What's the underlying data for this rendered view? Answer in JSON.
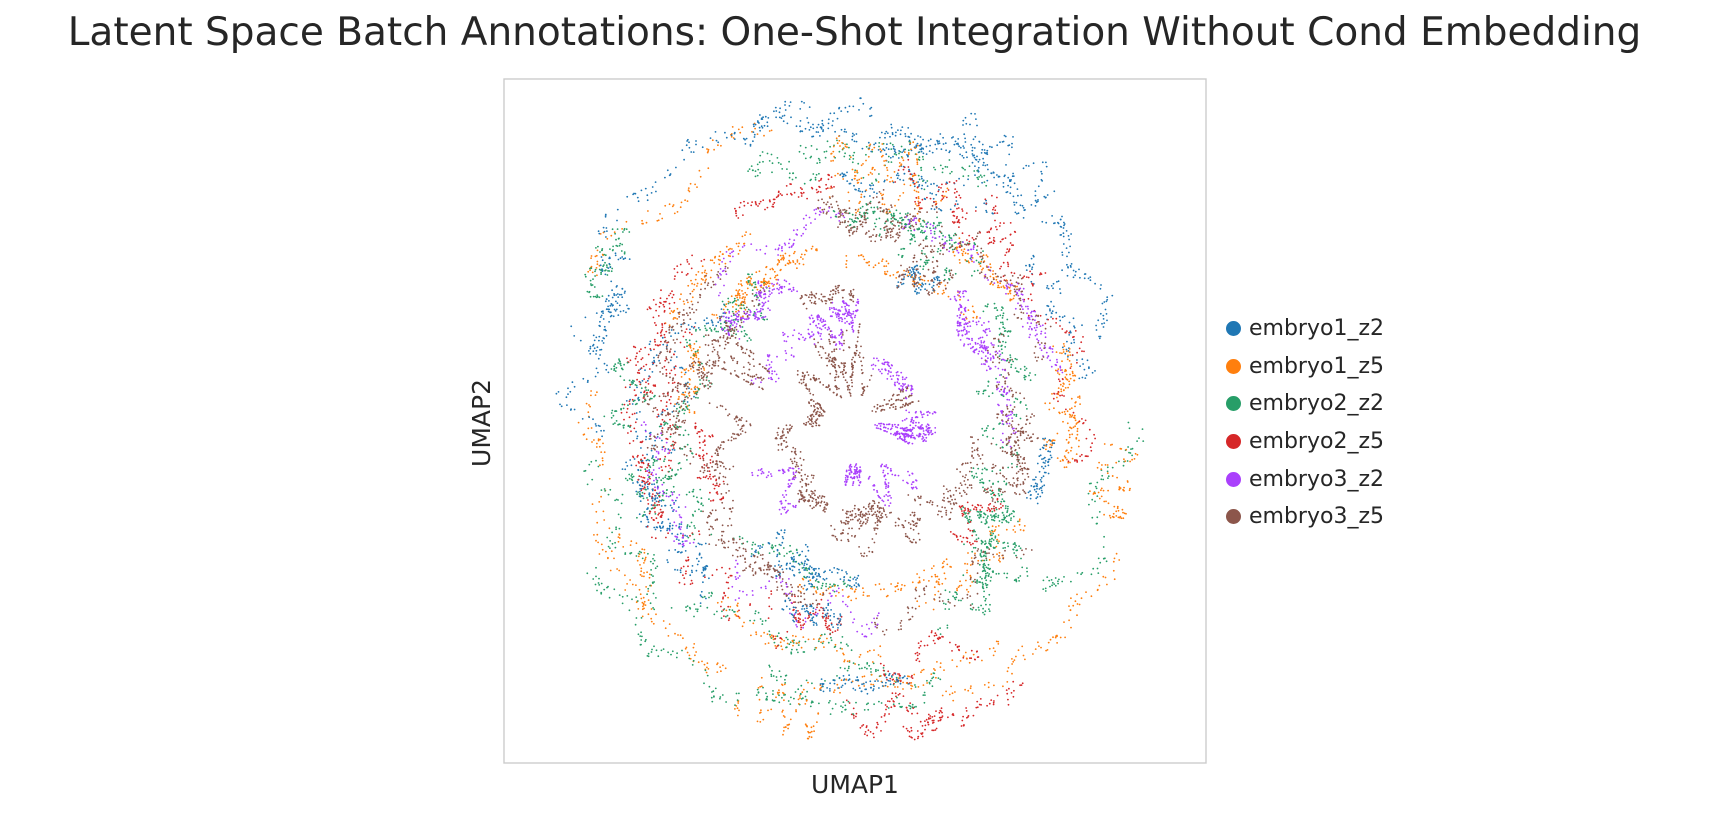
{
  "chart_data": {
    "type": "scatter",
    "title": "Latent Space Batch Annotations: One-Shot Integration Without Cond Embedding",
    "xlabel": "UMAP1",
    "ylabel": "UMAP2",
    "grid": false,
    "legend_position": "right",
    "series": [
      {
        "name": "embryo1_z2",
        "color": "#1f77b4"
      },
      {
        "name": "embryo1_z5",
        "color": "#ff7f0e"
      },
      {
        "name": "embryo2_z2",
        "color": "#279e68"
      },
      {
        "name": "embryo2_z5",
        "color": "#d62728"
      },
      {
        "name": "embryo3_z2",
        "color": "#aa40fc"
      },
      {
        "name": "embryo3_z5",
        "color": "#8c564b"
      }
    ]
  }
}
